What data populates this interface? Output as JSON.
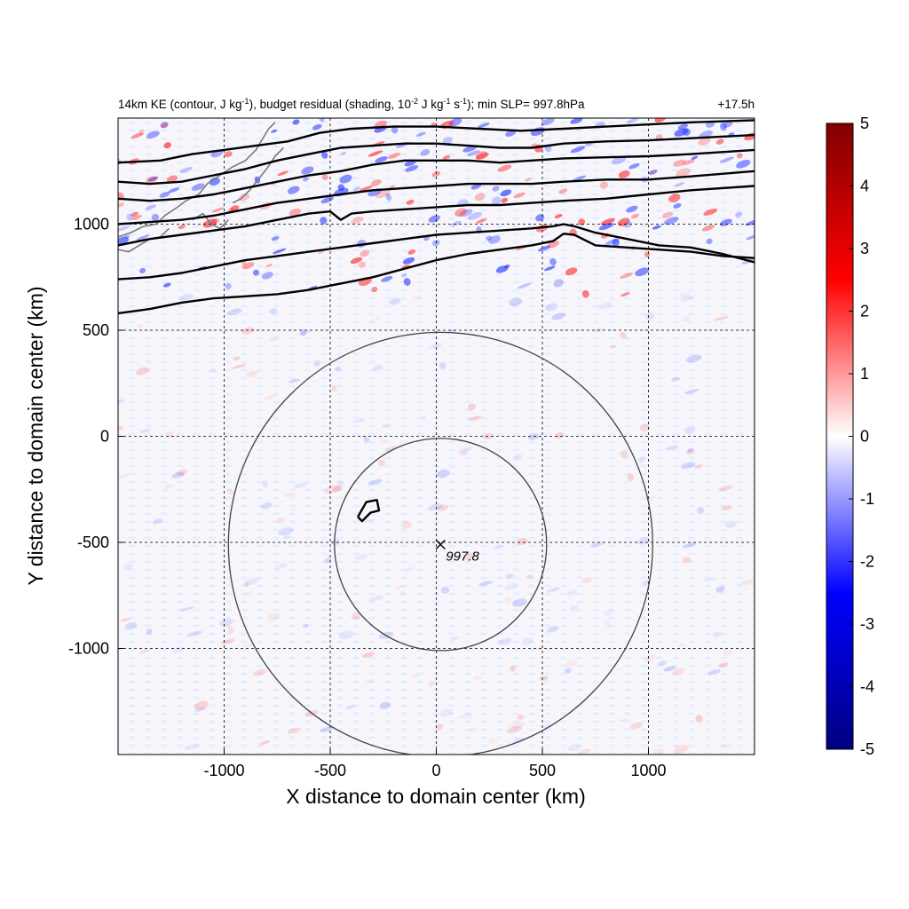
{
  "chart_data": {
    "type": "heatmap",
    "title": {
      "p1": "14km KE (contour, J kg",
      "p1_sup": "-1",
      "p2": "), budget residual (shading, 10",
      "p2_sup": "-2",
      "p3": " J kg",
      "p3_sup": "-1",
      "p4": " s",
      "p4_sup": "-1",
      "p5": "); min SLP= 997.8hPa"
    },
    "time_label": "+17.5h",
    "xlabel": "X distance to domain center (km)",
    "ylabel": "Y distance to domain center (km)",
    "xlim": [
      -1500,
      1500
    ],
    "ylim": [
      -1500,
      1500
    ],
    "x_ticks": [
      -1000,
      -500,
      0,
      500,
      1000
    ],
    "x_tick_labels": [
      "-1000",
      "-500",
      "0",
      "500",
      "1000"
    ],
    "y_ticks": [
      -1000,
      -500,
      0,
      500,
      1000
    ],
    "y_tick_labels": [
      "-1000",
      "-500",
      "0",
      "500",
      "1000"
    ],
    "grid": true,
    "colorbar": {
      "min": -5,
      "max": 5,
      "ticks": [
        5,
        4,
        3,
        2,
        1,
        0,
        -1,
        -2,
        -3,
        -4,
        -5
      ],
      "tick_labels": [
        "5",
        "4",
        "3",
        "2",
        "1",
        "0",
        "-1",
        "-2",
        "-3",
        "-4",
        "-5"
      ],
      "colors": [
        "#000080",
        "#0000ff",
        "#ffffff",
        "#ff0000",
        "#800000"
      ]
    },
    "storm_center": {
      "x": 20,
      "y": -510,
      "label": "997.8"
    },
    "range_rings_km": [
      500,
      1000
    ],
    "ke_contours": [
      [
        [
          -1500,
          1290
        ],
        [
          -1300,
          1300
        ],
        [
          -1150,
          1330
        ],
        [
          -1000,
          1350
        ],
        [
          -850,
          1370
        ],
        [
          -700,
          1390
        ],
        [
          -550,
          1430
        ],
        [
          -400,
          1450
        ],
        [
          -200,
          1460
        ],
        [
          0,
          1460
        ],
        [
          200,
          1450
        ],
        [
          400,
          1440
        ],
        [
          600,
          1450
        ],
        [
          800,
          1460
        ],
        [
          1000,
          1470
        ],
        [
          1200,
          1480
        ],
        [
          1500,
          1490
        ]
      ],
      [
        [
          -1500,
          1200
        ],
        [
          -1350,
          1190
        ],
        [
          -1200,
          1200
        ],
        [
          -1050,
          1230
        ],
        [
          -900,
          1260
        ],
        [
          -750,
          1300
        ],
        [
          -600,
          1330
        ],
        [
          -450,
          1360
        ],
        [
          -300,
          1370
        ],
        [
          -150,
          1380
        ],
        [
          0,
          1380
        ],
        [
          150,
          1370
        ],
        [
          300,
          1360
        ],
        [
          450,
          1360
        ],
        [
          600,
          1380
        ],
        [
          800,
          1390
        ],
        [
          1000,
          1395
        ],
        [
          1200,
          1405
        ],
        [
          1500,
          1420
        ]
      ],
      [
        [
          -1500,
          1120
        ],
        [
          -1350,
          1110
        ],
        [
          -1200,
          1120
        ],
        [
          -1050,
          1140
        ],
        [
          -900,
          1170
        ],
        [
          -750,
          1200
        ],
        [
          -600,
          1230
        ],
        [
          -450,
          1250
        ],
        [
          -300,
          1280
        ],
        [
          -150,
          1300
        ],
        [
          0,
          1300
        ],
        [
          150,
          1300
        ],
        [
          300,
          1290
        ],
        [
          450,
          1300
        ],
        [
          600,
          1310
        ],
        [
          800,
          1315
        ],
        [
          1000,
          1320
        ],
        [
          1200,
          1330
        ],
        [
          1500,
          1350
        ]
      ],
      [
        [
          -1500,
          1000
        ],
        [
          -1350,
          1010
        ],
        [
          -1200,
          1020
        ],
        [
          -1050,
          1040
        ],
        [
          -900,
          1070
        ],
        [
          -750,
          1100
        ],
        [
          -600,
          1120
        ],
        [
          -450,
          1140
        ],
        [
          -300,
          1160
        ],
        [
          -150,
          1170
        ],
        [
          0,
          1180
        ],
        [
          150,
          1190
        ],
        [
          300,
          1190
        ],
        [
          450,
          1190
        ],
        [
          600,
          1200
        ],
        [
          800,
          1210
        ],
        [
          1000,
          1210
        ],
        [
          1200,
          1225
        ],
        [
          1500,
          1250
        ]
      ],
      [
        [
          -1500,
          900
        ],
        [
          -1350,
          930
        ],
        [
          -1200,
          950
        ],
        [
          -1050,
          970
        ],
        [
          -900,
          990
        ],
        [
          -750,
          1020
        ],
        [
          -600,
          1050
        ],
        [
          -500,
          1060
        ],
        [
          -450,
          1020
        ],
        [
          -400,
          1050
        ],
        [
          -300,
          1060
        ],
        [
          -150,
          1070
        ],
        [
          0,
          1080
        ],
        [
          150,
          1090
        ],
        [
          300,
          1090
        ],
        [
          450,
          1100
        ],
        [
          600,
          1110
        ],
        [
          800,
          1120
        ],
        [
          1000,
          1140
        ],
        [
          1200,
          1160
        ],
        [
          1500,
          1180
        ]
      ],
      [
        [
          -1500,
          740
        ],
        [
          -1350,
          750
        ],
        [
          -1200,
          770
        ],
        [
          -1050,
          800
        ],
        [
          -900,
          830
        ],
        [
          -750,
          850
        ],
        [
          -600,
          870
        ],
        [
          -450,
          890
        ],
        [
          -300,
          910
        ],
        [
          -150,
          930
        ],
        [
          0,
          950
        ],
        [
          150,
          960
        ],
        [
          300,
          970
        ],
        [
          450,
          980
        ],
        [
          550,
          990
        ],
        [
          600,
          1000
        ],
        [
          650,
          990
        ],
        [
          750,
          960
        ],
        [
          900,
          930
        ],
        [
          1050,
          900
        ],
        [
          1200,
          890
        ],
        [
          1350,
          860
        ],
        [
          1500,
          820
        ]
      ],
      [
        [
          -1500,
          580
        ],
        [
          -1350,
          600
        ],
        [
          -1200,
          630
        ],
        [
          -1050,
          650
        ],
        [
          -900,
          660
        ],
        [
          -750,
          670
        ],
        [
          -600,
          690
        ],
        [
          -450,
          720
        ],
        [
          -300,
          750
        ],
        [
          -150,
          790
        ],
        [
          0,
          830
        ],
        [
          150,
          860
        ],
        [
          300,
          880
        ],
        [
          450,
          900
        ],
        [
          550,
          920
        ],
        [
          600,
          955
        ],
        [
          650,
          950
        ],
        [
          750,
          900
        ],
        [
          900,
          890
        ],
        [
          1050,
          880
        ],
        [
          1200,
          870
        ],
        [
          1350,
          850
        ],
        [
          1500,
          840
        ]
      ]
    ],
    "ke_small_contour": [
      [
        -370,
        -380
      ],
      [
        -330,
        -310
      ],
      [
        -280,
        -300
      ],
      [
        -270,
        -350
      ],
      [
        -310,
        -360
      ],
      [
        -350,
        -400
      ],
      [
        -370,
        -380
      ]
    ]
  }
}
